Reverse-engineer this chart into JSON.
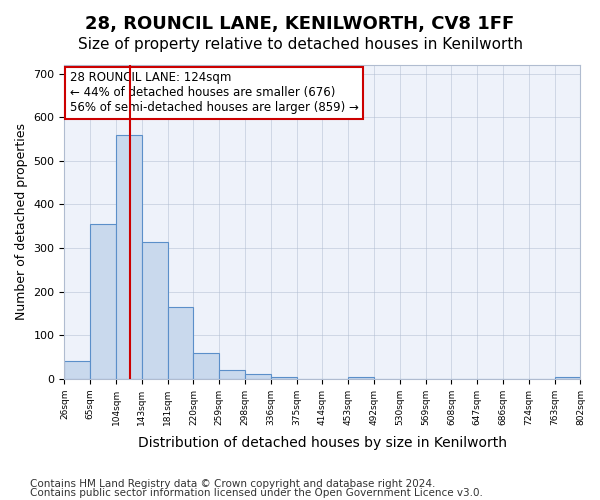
{
  "title1": "28, ROUNCIL LANE, KENILWORTH, CV8 1FF",
  "title2": "Size of property relative to detached houses in Kenilworth",
  "xlabel": "Distribution of detached houses by size in Kenilworth",
  "ylabel": "Number of detached properties",
  "footnote1": "Contains HM Land Registry data © Crown copyright and database right 2024.",
  "footnote2": "Contains public sector information licensed under the Open Government Licence v3.0.",
  "annotation_line1": "28 ROUNCIL LANE: 124sqm",
  "annotation_line2": "← 44% of detached houses are smaller (676)",
  "annotation_line3": "56% of semi-detached houses are larger (859) →",
  "bar_color": "#c9d9ed",
  "bar_edge_color": "#5b8fc9",
  "redline_color": "#cc0000",
  "background_color": "#eef2fa",
  "bin_labels": [
    "26sqm",
    "65sqm",
    "104sqm",
    "143sqm",
    "181sqm",
    "220sqm",
    "259sqm",
    "298sqm",
    "336sqm",
    "375sqm",
    "414sqm",
    "453sqm",
    "492sqm",
    "530sqm",
    "569sqm",
    "608sqm",
    "647sqm",
    "686sqm",
    "724sqm",
    "763sqm",
    "802sqm"
  ],
  "bar_values": [
    40,
    355,
    560,
    315,
    165,
    60,
    20,
    10,
    5,
    0,
    0,
    5,
    0,
    0,
    0,
    0,
    0,
    0,
    0,
    5
  ],
  "redline_x": 2.54,
  "ylim": [
    0,
    720
  ],
  "yticks": [
    0,
    100,
    200,
    300,
    400,
    500,
    600,
    700
  ],
  "title1_fontsize": 13,
  "title2_fontsize": 11,
  "xlabel_fontsize": 10,
  "ylabel_fontsize": 9,
  "annotation_fontsize": 8.5,
  "footnote_fontsize": 7.5
}
